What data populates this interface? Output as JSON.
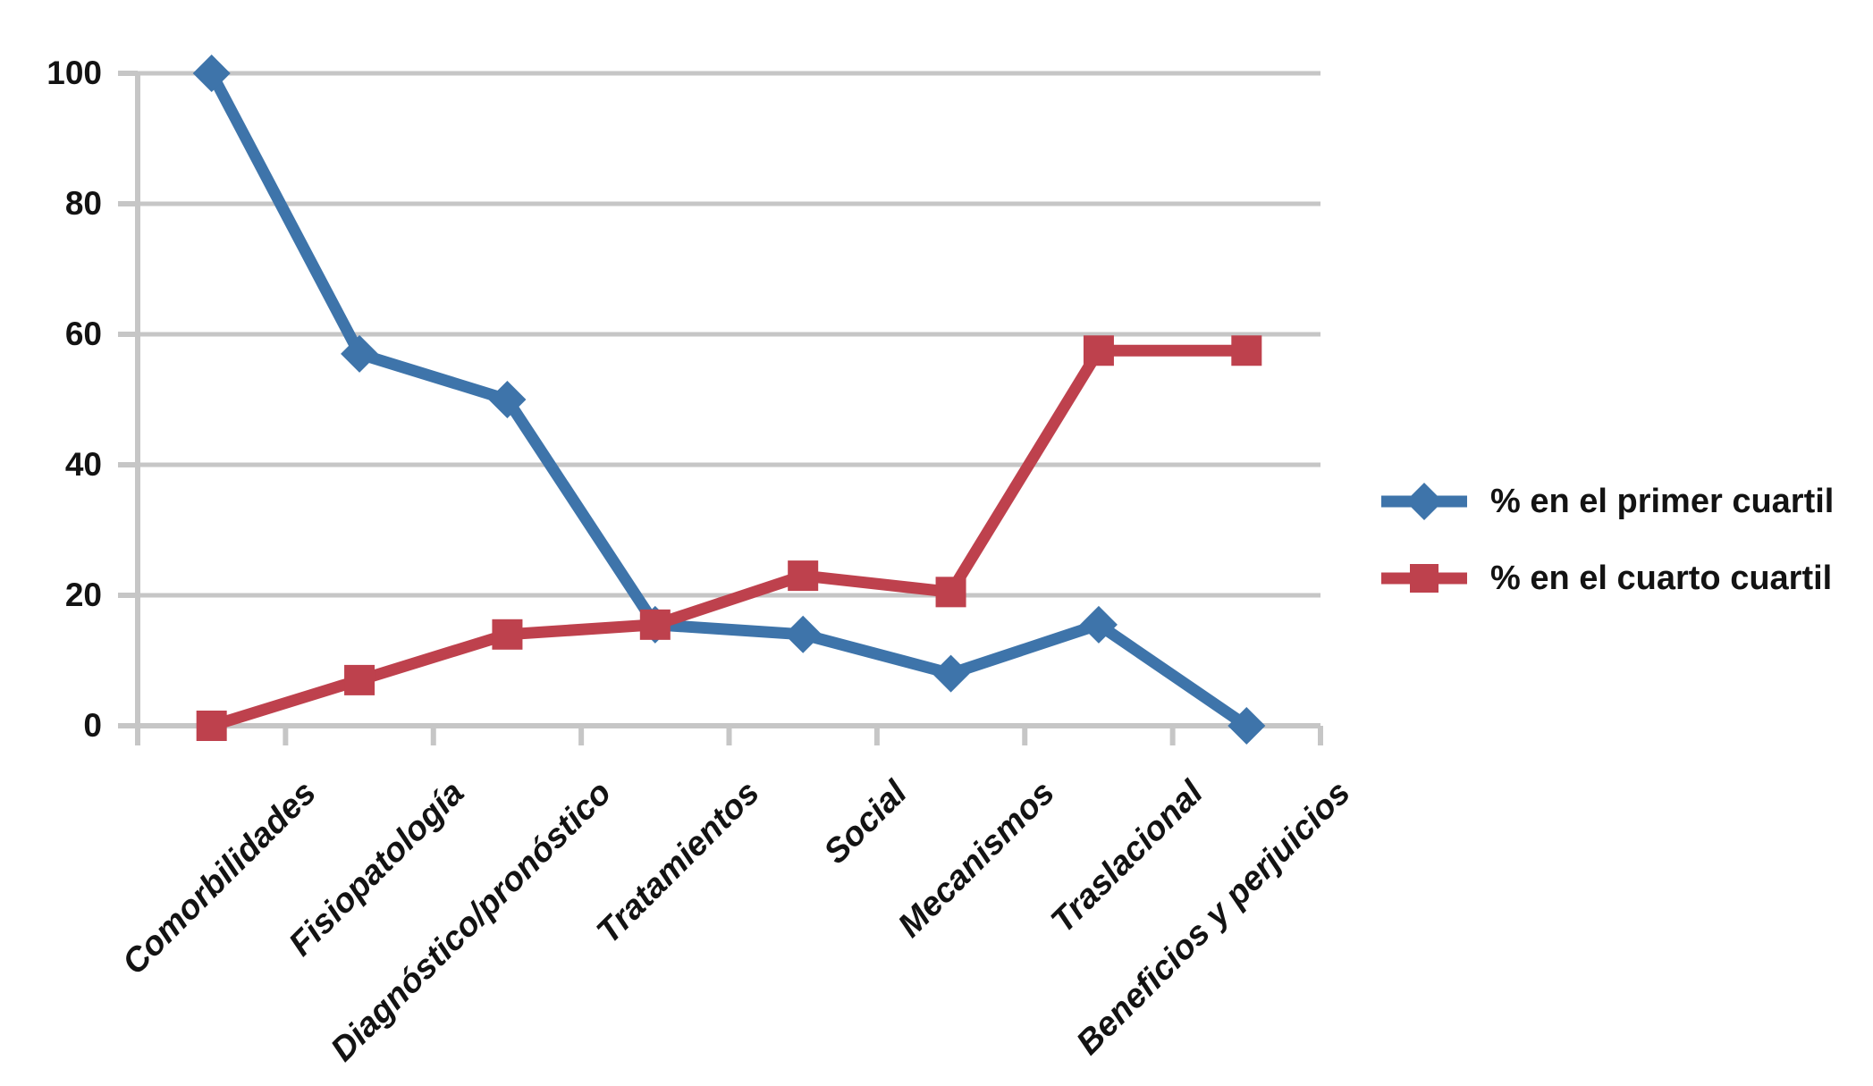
{
  "chart_data": {
    "type": "line",
    "title": "",
    "xlabel": "",
    "ylabel": "",
    "categories": [
      "Comorbilidades",
      "Fisiopatología",
      "Diagnóstico/pronóstico",
      "Tratamientos",
      "Social",
      "Mecanismos",
      "Traslacional",
      "Beneficios y perjuicios"
    ],
    "series": [
      {
        "name": "% en el primer cuartil",
        "marker": "diamond",
        "color": "#3E74AA",
        "values": [
          100,
          57,
          50,
          15.5,
          14,
          8,
          15.5,
          0
        ]
      },
      {
        "name": "% en el cuarto cuartil",
        "marker": "square",
        "color": "#BE414D",
        "values": [
          0,
          7,
          14,
          15.5,
          23,
          20.5,
          57.5,
          57.5
        ]
      }
    ],
    "ylim": [
      0,
      100
    ],
    "yticks": [
      0,
      20,
      40,
      60,
      80,
      100
    ],
    "ytick_labels": [
      "0",
      "20",
      "40",
      "60",
      "80",
      "100"
    ],
    "grid": true,
    "grid_color": "#C6C6C6",
    "axis_color": "#C6C6C6",
    "text_color": "#131313",
    "background": "#FFFFFF",
    "legend_position": "right-middle",
    "x_tick_label_rotation": -45
  }
}
